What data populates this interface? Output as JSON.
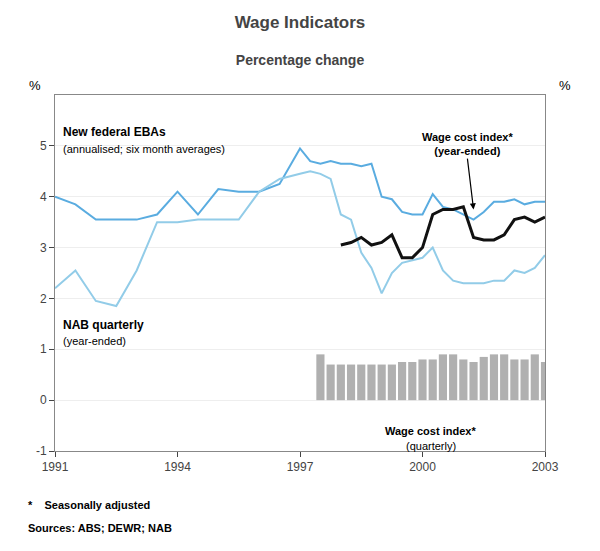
{
  "chart_data": {
    "type": "line",
    "title": "Wage Indicators",
    "subtitle": "Percentage change",
    "ylabel": "%",
    "y2label": "%",
    "xlim": [
      1991,
      2003
    ],
    "xticks": [
      1991,
      1994,
      1997,
      2000,
      2003
    ],
    "ylim": [
      -1,
      6
    ],
    "yticks": [
      -1,
      0,
      1,
      2,
      3,
      4,
      5
    ],
    "y2lim": [
      -1,
      6
    ],
    "y2ticks": [
      -1,
      0,
      1,
      2,
      3,
      4,
      5
    ],
    "grid": true,
    "series": [
      {
        "type": "line",
        "color": "#5aace0",
        "x": [
          1991.0,
          1991.5,
          1992.0,
          1992.5,
          1993.0,
          1993.5,
          1994.0,
          1994.5,
          1995.0,
          1995.5,
          1996.0,
          1996.5,
          1997.0,
          1997.25,
          1997.5,
          1997.75,
          1998.0,
          1998.25,
          1998.5,
          1998.75,
          1999.0,
          1999.25,
          1999.5,
          1999.75,
          2000.0,
          2000.25,
          2000.5,
          2000.75,
          2001.0,
          2001.25,
          2001.5,
          2001.75,
          2002.0,
          2002.25,
          2002.5,
          2002.75,
          2003.0
        ],
        "values": [
          4.0,
          3.85,
          3.55,
          3.55,
          3.55,
          3.65,
          4.1,
          3.65,
          4.15,
          4.1,
          4.1,
          4.25,
          4.95,
          4.7,
          4.65,
          4.7,
          4.65,
          4.65,
          4.6,
          4.65,
          4.0,
          3.95,
          3.7,
          3.65,
          3.65,
          4.05,
          3.8,
          3.75,
          3.65,
          3.55,
          3.7,
          3.9,
          3.9,
          3.95,
          3.85,
          3.9,
          3.9
        ]
      },
      {
        "type": "line",
        "color": "#92cce8",
        "x": [
          1991.0,
          1991.5,
          1992.0,
          1992.5,
          1993.0,
          1993.5,
          1994.0,
          1994.5,
          1995.0,
          1995.5,
          1996.0,
          1996.5,
          1997.0,
          1997.25,
          1997.5,
          1997.75,
          1998.0,
          1998.25,
          1998.5,
          1998.75,
          1999.0,
          1999.25,
          1999.5,
          1999.75,
          2000.0,
          2000.25,
          2000.5,
          2000.75,
          2001.0,
          2001.25,
          2001.5,
          2001.75,
          2002.0,
          2002.25,
          2002.5,
          2002.75,
          2003.0
        ],
        "values": [
          2.2,
          2.55,
          1.95,
          1.85,
          2.55,
          3.5,
          3.5,
          3.55,
          3.55,
          3.55,
          4.1,
          4.35,
          4.45,
          4.5,
          4.45,
          4.35,
          3.65,
          3.55,
          2.9,
          2.6,
          2.1,
          2.5,
          2.7,
          2.75,
          2.8,
          3.0,
          2.55,
          2.35,
          2.3,
          2.3,
          2.3,
          2.35,
          2.35,
          2.55,
          2.5,
          2.6,
          2.85
        ]
      },
      {
        "type": "line",
        "color": "#111111",
        "x": [
          1998.0,
          1998.25,
          1998.5,
          1998.75,
          1999.0,
          1999.25,
          1999.5,
          1999.75,
          2000.0,
          2000.25,
          2000.5,
          2000.75,
          2001.0,
          2001.25,
          2001.5,
          2001.75,
          2002.0,
          2002.25,
          2002.5,
          2002.75,
          2003.0
        ],
        "values": [
          3.05,
          3.1,
          3.2,
          3.05,
          3.1,
          3.25,
          2.8,
          2.8,
          3.0,
          3.65,
          3.75,
          3.75,
          3.8,
          3.2,
          3.15,
          3.15,
          3.25,
          3.55,
          3.6,
          3.5,
          3.6
        ]
      },
      {
        "type": "bar",
        "color": "#b0b0b0",
        "x": [
          1997.5,
          1997.75,
          1998.0,
          1998.25,
          1998.5,
          1998.75,
          1999.0,
          1999.25,
          1999.5,
          1999.75,
          2000.0,
          2000.25,
          2000.5,
          2000.75,
          2001.0,
          2001.25,
          2001.5,
          2001.75,
          2002.0,
          2002.25,
          2002.5,
          2002.75,
          2003.0
        ],
        "values": [
          0.9,
          0.7,
          0.7,
          0.7,
          0.7,
          0.7,
          0.7,
          0.7,
          0.75,
          0.75,
          0.8,
          0.8,
          0.9,
          0.9,
          0.8,
          0.75,
          0.85,
          0.9,
          0.9,
          0.8,
          0.8,
          0.9,
          0.75
        ]
      }
    ],
    "annotations": [
      "New federal EBAs",
      "(annualised; six month averages)",
      "NAB quarterly",
      "(year-ended)",
      "Wage cost index*\n(year-ended)",
      "Wage cost index*",
      "(quarterly)"
    ],
    "footnotes": [
      "*    Seasonally adjusted",
      "Sources: ABS; DEWR; NAB"
    ]
  }
}
